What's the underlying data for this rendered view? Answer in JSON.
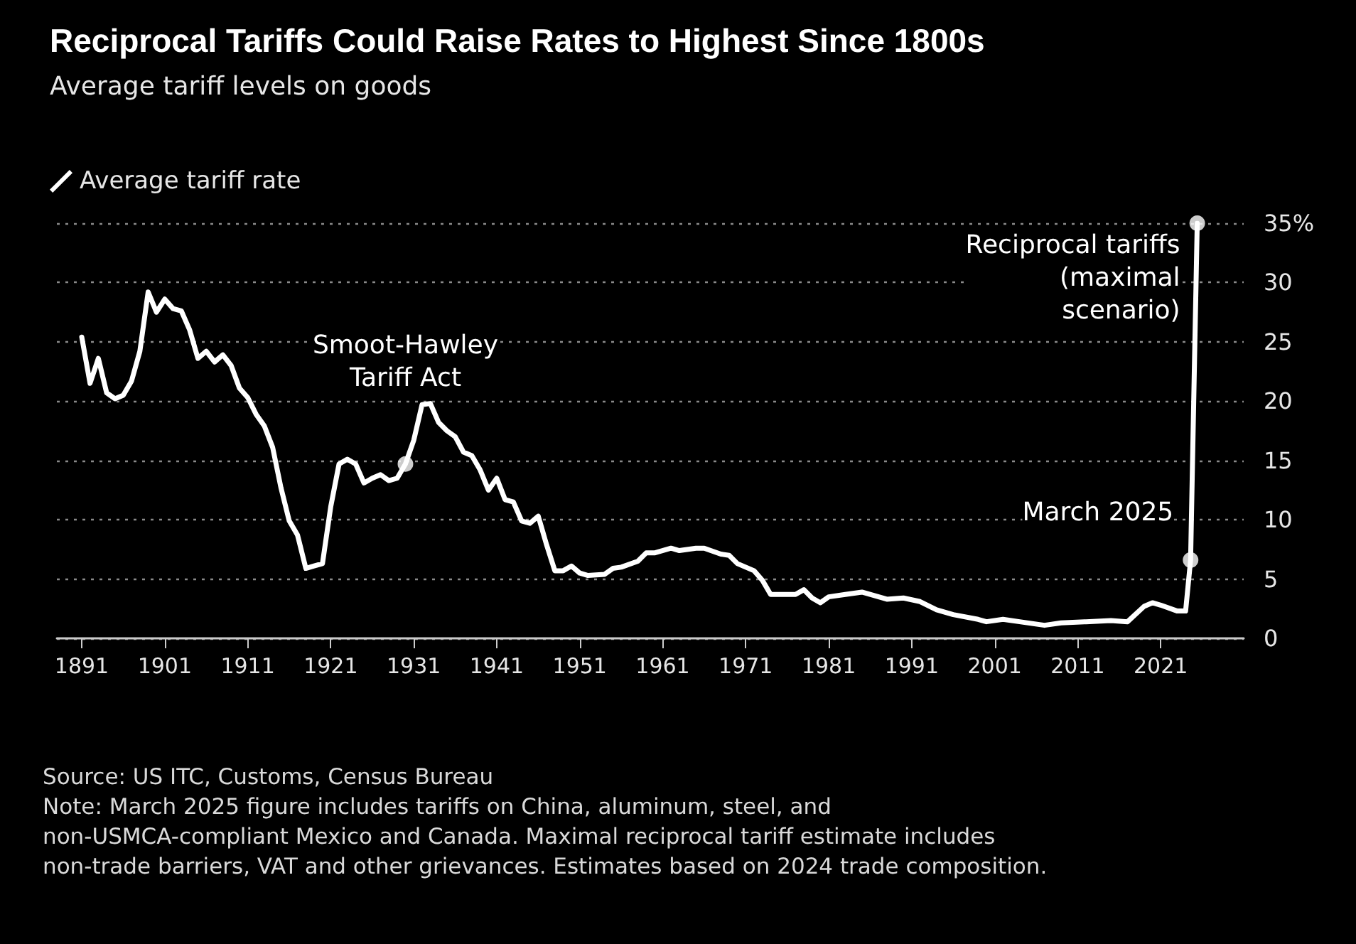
{
  "chart_data": {
    "type": "line",
    "title": "Reciprocal Tariffs Could Raise Rates to Highest Since 1800s",
    "subtitle": "Average tariff levels on goods",
    "x": [
      1891,
      1892,
      1893,
      1894,
      1895,
      1896,
      1897,
      1898,
      1899,
      1900,
      1901,
      1902,
      1903,
      1904,
      1905,
      1906,
      1907,
      1908,
      1909,
      1910,
      1911,
      1912,
      1913,
      1914,
      1915,
      1916,
      1917,
      1918,
      1919,
      1920,
      1921,
      1922,
      1923,
      1924,
      1925,
      1926,
      1927,
      1928,
      1929,
      1930,
      1931,
      1932,
      1933,
      1934,
      1935,
      1936,
      1937,
      1938,
      1939,
      1940,
      1941,
      1942,
      1943,
      1944,
      1945,
      1946,
      1947,
      1948,
      1949,
      1950,
      1951,
      1952,
      1954,
      1955,
      1956,
      1958,
      1959,
      1960,
      1962,
      1963,
      1965,
      1966,
      1968,
      1969,
      1970,
      1972,
      1973,
      1974,
      1975,
      1977,
      1978,
      1979,
      1980,
      1981,
      1983,
      1985,
      1988,
      1990,
      1992,
      1994,
      1996,
      1999,
      2000,
      2002,
      2004,
      2007,
      2009,
      2012,
      2015,
      2017,
      2019,
      2020,
      2021,
      2023,
      2024,
      2024.6,
      2025.4
    ],
    "series": [
      {
        "name": "Average tariff rate",
        "color": "#ffffff",
        "marker": "none",
        "line_style": "solid",
        "values": [
          25.4,
          21.5,
          23.6,
          20.7,
          20.2,
          20.5,
          21.7,
          24.2,
          29.2,
          27.5,
          28.6,
          27.8,
          27.6,
          26,
          23.6,
          24.2,
          23.3,
          23.9,
          23,
          21.1,
          20.3,
          18.9,
          17.9,
          16.1,
          12.7,
          9.9,
          8.7,
          5.9,
          6.1,
          6.3,
          11.1,
          14.7,
          15.1,
          14.7,
          13.1,
          13.5,
          13.8,
          13.3,
          13.5,
          14.7,
          16.7,
          19.7,
          19.8,
          18.2,
          17.5,
          17,
          15.7,
          15.4,
          14.2,
          12.5,
          13.5,
          11.7,
          11.5,
          9.9,
          9.7,
          10.3,
          7.9,
          5.7,
          5.7,
          6.1,
          5.5,
          5.3,
          5.4,
          5.9,
          6,
          6.5,
          7.2,
          7.2,
          7.6,
          7.4,
          7.6,
          7.6,
          7.1,
          7,
          6.3,
          5.7,
          4.9,
          3.7,
          3.7,
          3.7,
          4.1,
          3.4,
          3,
          3.5,
          3.7,
          3.9,
          3.3,
          3.4,
          3.1,
          2.4,
          2,
          1.6,
          1.4,
          1.6,
          1.4,
          1.1,
          1.3,
          1.4,
          1.5,
          1.4,
          2.7,
          3,
          2.8,
          2.3,
          2.3,
          6.6,
          35
        ]
      },
      {
        "type": "scatter",
        "color": "#ffffff",
        "marker": "circle",
        "x": [
          1930,
          2024.6,
          2025.4
        ],
        "values": [
          14.7,
          6.6,
          35
        ]
      }
    ],
    "xlim": [
      1888,
      2031
    ],
    "xticks": [
      1891,
      1901,
      1911,
      1921,
      1931,
      1941,
      1951,
      1961,
      1971,
      1981,
      1991,
      2001,
      2011,
      2021
    ],
    "ylim": [
      0,
      35
    ],
    "yticks": [
      0,
      5,
      10,
      15,
      20,
      25,
      30,
      {
        "value": 35,
        "label": "35%"
      }
    ],
    "grid": "y",
    "legend": "top left",
    "annotations": [
      {
        "text": "Smoot-Hawley\nTariff Act",
        "x": 1930,
        "y": 14.7
      },
      {
        "text": "March 2025",
        "x": 2024.6,
        "y": 6.6
      },
      {
        "text": "Reciprocal tariffs\n(maximal\nscenario)",
        "x": 2025.4,
        "y": 35
      },
      "Source: US ITC, Customs, Census Bureau",
      "Note: March 2025 figure includes tariffs on China, aluminum, steel, and non-USMCA-compliant Mexico and Canada. Maximal reciprocal tariff estimate includes non-trade barriers, VAT and other grievances. Estimates based on 2024 trade composition."
    ]
  }
}
